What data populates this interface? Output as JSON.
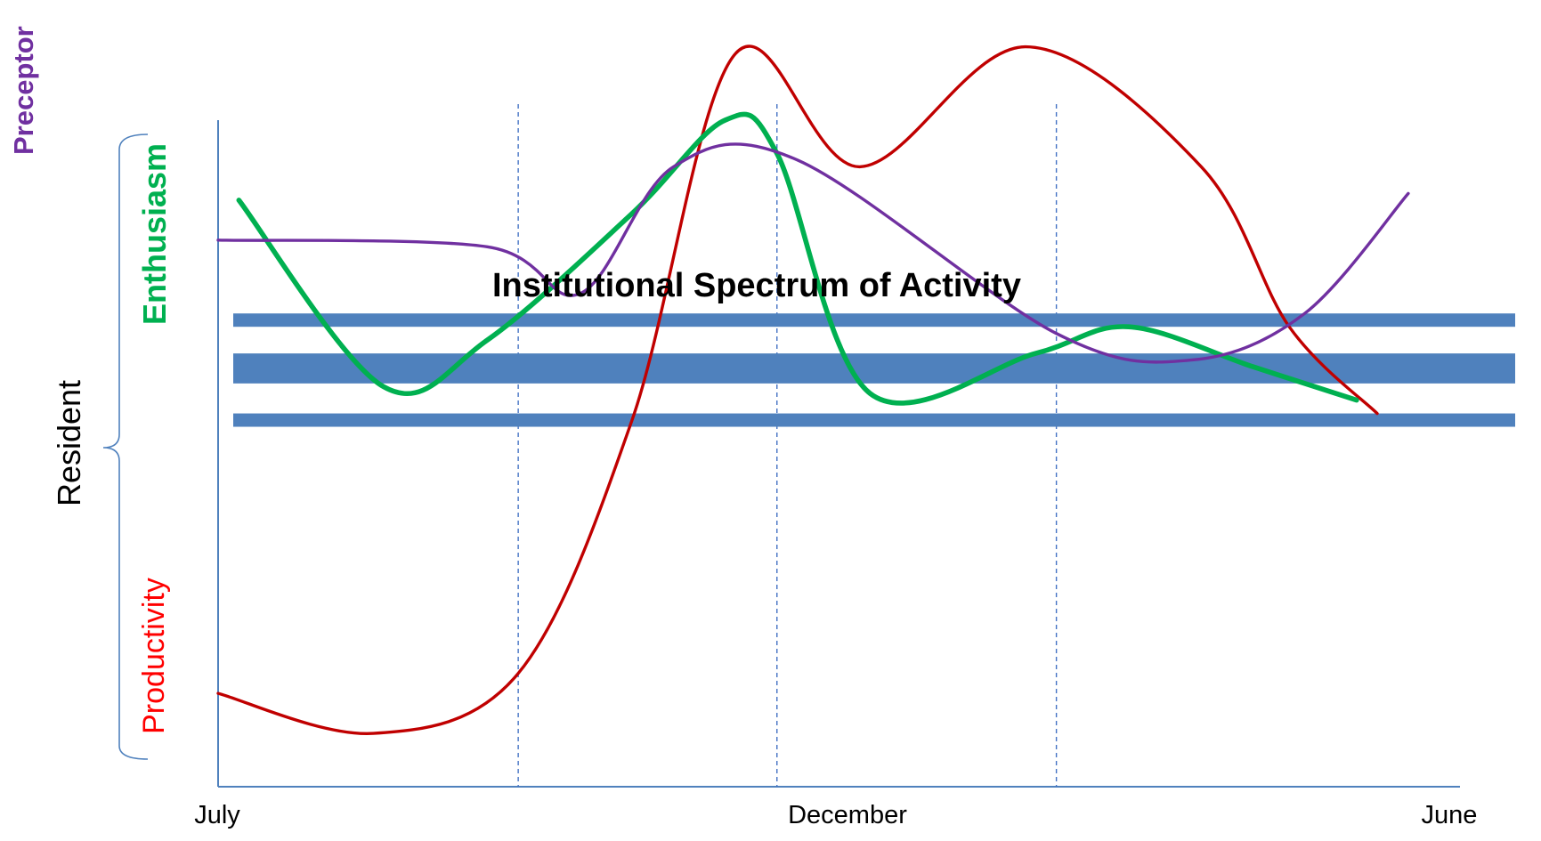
{
  "chart_data": {
    "type": "line",
    "title": "",
    "xlabel": "",
    "ylabel": "",
    "x_ticks": [
      "July",
      "December",
      "June"
    ],
    "y_group_label": "Resident",
    "y_labels": [
      {
        "text": "Preceptor",
        "color": "#7030A0"
      },
      {
        "text": "Enthusiasm",
        "color": "#00B050"
      },
      {
        "text": "Productivity",
        "color": "#FF0000"
      }
    ],
    "band": {
      "label": "Institutional Spectrum of Activity",
      "color": "#4F81BD",
      "thin_band_1": [
        0.69,
        0.71
      ],
      "thick_band": [
        0.605,
        0.65
      ],
      "thin_band_2": [
        0.54,
        0.56
      ]
    },
    "xlim": [
      0,
      12
    ],
    "ylim": [
      0,
      1
    ],
    "vlines": [
      2.9,
      5.4,
      8.1
    ],
    "series": [
      {
        "name": "Productivity",
        "color": "#C00000",
        "points": [
          [
            0,
            0.14
          ],
          [
            1.5,
            0.08
          ],
          [
            2.9,
            0.17
          ],
          [
            4,
            0.55
          ],
          [
            5,
            1.1
          ],
          [
            6.2,
            0.93
          ],
          [
            7.8,
            1.11
          ],
          [
            9.5,
            0.93
          ],
          [
            10.35,
            0.69
          ],
          [
            11.2,
            0.56
          ]
        ]
      },
      {
        "name": "Enthusiasm",
        "color": "#00B050",
        "points": [
          [
            0.2,
            0.88
          ],
          [
            1.6,
            0.6
          ],
          [
            2.6,
            0.67
          ],
          [
            4,
            0.86
          ],
          [
            4.9,
            1.0
          ],
          [
            5.4,
            0.95
          ],
          [
            6.3,
            0.59
          ],
          [
            7.9,
            0.65
          ],
          [
            8.8,
            0.69
          ],
          [
            10,
            0.63
          ],
          [
            11,
            0.58
          ]
        ]
      },
      {
        "name": "Preceptor",
        "color": "#7030A0",
        "points": [
          [
            0,
            0.82
          ],
          [
            2.6,
            0.81
          ],
          [
            3.5,
            0.74
          ],
          [
            4.4,
            0.93
          ],
          [
            5.6,
            0.94
          ],
          [
            8.1,
            0.68
          ],
          [
            9.4,
            0.64
          ],
          [
            10.5,
            0.71
          ],
          [
            11.5,
            0.89
          ]
        ]
      }
    ]
  }
}
